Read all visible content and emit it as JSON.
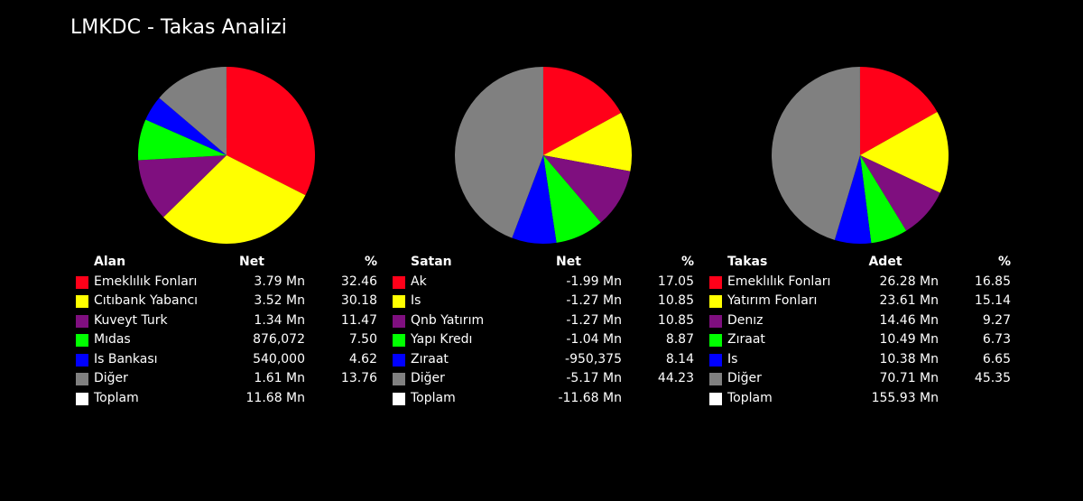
{
  "title": "LMKDC - Takas Analizi",
  "chart_data": [
    {
      "type": "pie",
      "header": {
        "name": "Alan",
        "value": "Net",
        "pct": "%"
      },
      "slices": [
        {
          "label": "Emeklılık Fonları",
          "value": "3.79 Mn",
          "percent": 32.46,
          "percent_text": "32.46",
          "color": "#ff0019"
        },
        {
          "label": "Cıtıbank Yabancı",
          "value": "3.52 Mn",
          "percent": 30.18,
          "percent_text": "30.18",
          "color": "#ffff00"
        },
        {
          "label": "Kuveyt Turk",
          "value": "1.34 Mn",
          "percent": 11.47,
          "percent_text": "11.47",
          "color": "#7f0f7f"
        },
        {
          "label": "Mıdas",
          "value": "876,072",
          "percent": 7.5,
          "percent_text": "7.50",
          "color": "#00ff00"
        },
        {
          "label": "Is Bankası",
          "value": "540,000",
          "percent": 4.62,
          "percent_text": "4.62",
          "color": "#0000ff"
        },
        {
          "label": "Diğer",
          "value": "1.61 Mn",
          "percent": 13.76,
          "percent_text": "13.76",
          "color": "#808080"
        }
      ],
      "total": {
        "label": "Toplam",
        "value": "11.68 Mn",
        "color": "#ffffff"
      }
    },
    {
      "type": "pie",
      "header": {
        "name": "Satan",
        "value": "Net",
        "pct": "%"
      },
      "slices": [
        {
          "label": "Ak",
          "value": "-1.99 Mn",
          "percent": 17.05,
          "percent_text": "17.05",
          "color": "#ff0019"
        },
        {
          "label": "Is",
          "value": "-1.27 Mn",
          "percent": 10.85,
          "percent_text": "10.85",
          "color": "#ffff00"
        },
        {
          "label": "Qnb Yatırım",
          "value": "-1.27 Mn",
          "percent": 10.85,
          "percent_text": "10.85",
          "color": "#7f0f7f"
        },
        {
          "label": "Yapı Kredı",
          "value": "-1.04 Mn",
          "percent": 8.87,
          "percent_text": "8.87",
          "color": "#00ff00"
        },
        {
          "label": "Zıraat",
          "value": "-950,375",
          "percent": 8.14,
          "percent_text": "8.14",
          "color": "#0000ff"
        },
        {
          "label": "Diğer",
          "value": "-5.17 Mn",
          "percent": 44.23,
          "percent_text": "44.23",
          "color": "#808080"
        }
      ],
      "total": {
        "label": "Toplam",
        "value": "-11.68 Mn",
        "color": "#ffffff"
      }
    },
    {
      "type": "pie",
      "header": {
        "name": "Takas",
        "value": "Adet",
        "pct": "%"
      },
      "slices": [
        {
          "label": "Emeklılık Fonları",
          "value": "26.28 Mn",
          "percent": 16.85,
          "percent_text": "16.85",
          "color": "#ff0019"
        },
        {
          "label": "Yatırım Fonları",
          "value": "23.61 Mn",
          "percent": 15.14,
          "percent_text": "15.14",
          "color": "#ffff00"
        },
        {
          "label": "Denız",
          "value": "14.46 Mn",
          "percent": 9.27,
          "percent_text": "9.27",
          "color": "#7f0f7f"
        },
        {
          "label": "Zıraat",
          "value": "10.49 Mn",
          "percent": 6.73,
          "percent_text": "6.73",
          "color": "#00ff00"
        },
        {
          "label": "Is",
          "value": "10.38 Mn",
          "percent": 6.65,
          "percent_text": "6.65",
          "color": "#0000ff"
        },
        {
          "label": "Diğer",
          "value": "70.71 Mn",
          "percent": 45.35,
          "percent_text": "45.35",
          "color": "#808080"
        }
      ],
      "total": {
        "label": "Toplam",
        "value": "155.93 Mn",
        "color": "#ffffff"
      }
    }
  ]
}
